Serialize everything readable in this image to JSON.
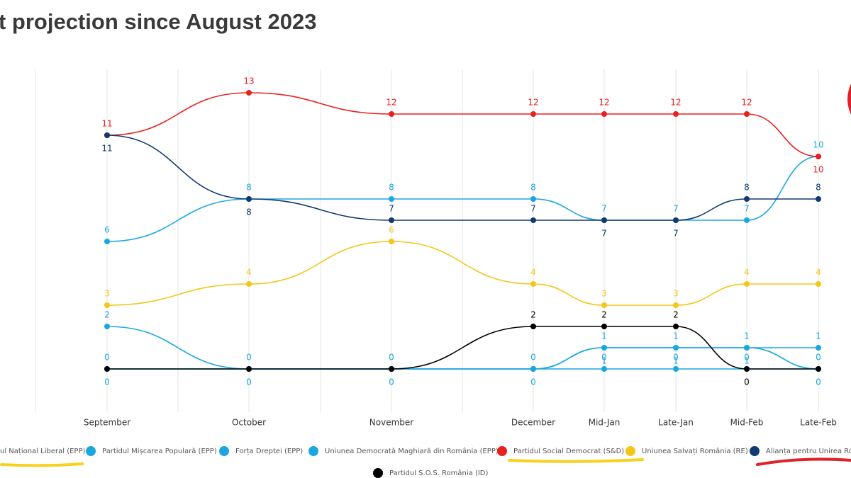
{
  "chart_data": {
    "type": "line",
    "title": "t projection since August 2023",
    "categories": [
      "September",
      "October",
      "November",
      "December",
      "Mid-Jan",
      "Late-Jan",
      "Mid-Feb",
      "Late-Feb"
    ],
    "series": [
      {
        "name": "ul Național Liberal (EPP)",
        "color": "#1aa7e0",
        "values": [
          6,
          8,
          8,
          8,
          7,
          7,
          7,
          10
        ]
      },
      {
        "name": "Partidul Mișcarea Populară (EPP)",
        "color": "#1aa7e0",
        "values": [
          2,
          0,
          0,
          0,
          1,
          1,
          1,
          1
        ]
      },
      {
        "name": "Forța Dreptei (EPP)",
        "color": "#1aa7e0",
        "values": [
          0,
          0,
          0,
          0,
          1,
          1,
          1,
          0
        ]
      },
      {
        "name": "Uniunea Democrată Maghiară din România (EPP)",
        "color": "#1aa7e0",
        "values": [
          0,
          0,
          0,
          0,
          0,
          0,
          0,
          0
        ]
      },
      {
        "name": "Partidul Social Democrat (S&D)",
        "color": "#e8201e",
        "values": [
          11,
          13,
          12,
          12,
          12,
          12,
          12,
          10
        ]
      },
      {
        "name": "Uniunea Salvați România (RE)",
        "color": "#f5c518",
        "values": [
          3,
          4,
          6,
          4,
          3,
          3,
          4,
          4
        ]
      },
      {
        "name": "Alianța pentru Unirea Ro",
        "color": "#123a72",
        "values": [
          11,
          8,
          7,
          7,
          7,
          7,
          8,
          8
        ]
      },
      {
        "name": "Partidul S.O.S. România (ID)",
        "color": "#000000",
        "values": [
          0,
          0,
          0,
          2,
          2,
          2,
          0,
          0
        ]
      }
    ]
  }
}
